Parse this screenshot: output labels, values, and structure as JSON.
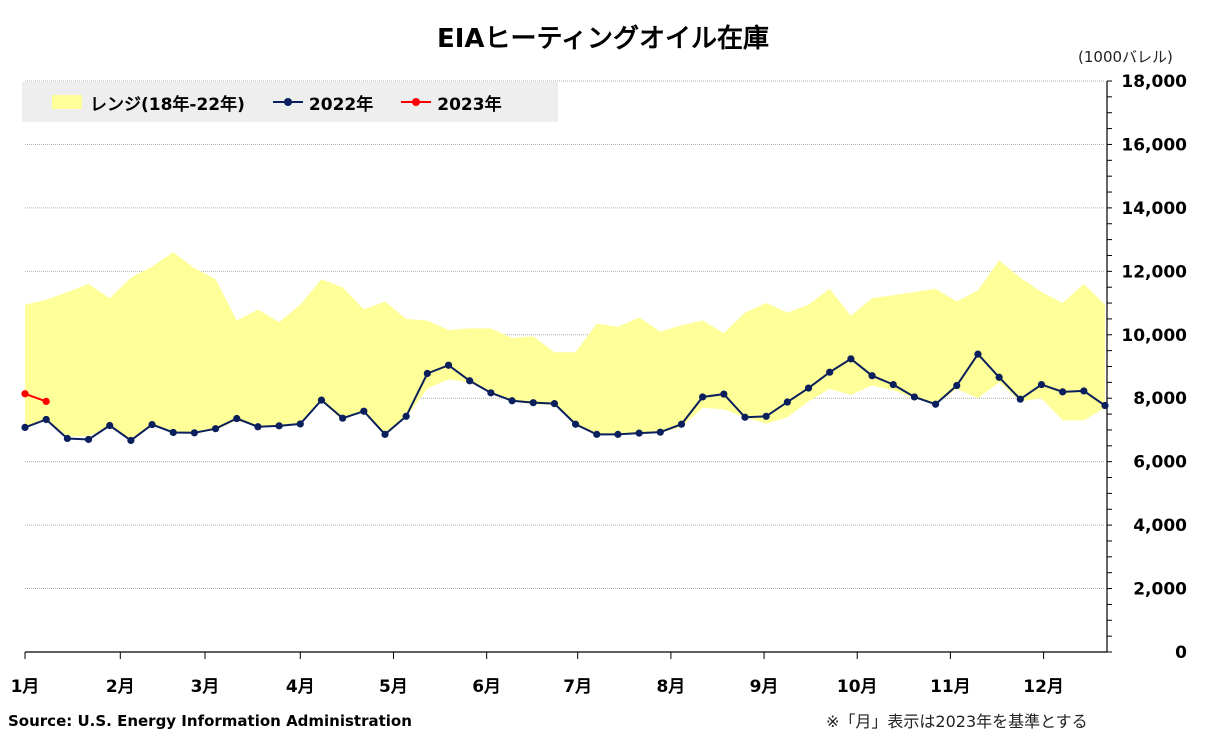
{
  "title": "EIAヒーティングオイル在庫",
  "unit_label": "(1000バレル)",
  "source": "Source: U.S. Energy Information Administration",
  "note": "※「月」表示は2023年を基準とする",
  "colors": {
    "range_fill": "#ffff99",
    "series_2022": "#0a1f5c",
    "series_2023": "#ff0000",
    "grid": "#b0b0b0",
    "legend_bg": "#eeeeee"
  },
  "legend": {
    "range": "レンジ(18年-22年)",
    "s2022": "2022年",
    "s2023": "2023年"
  },
  "chart_data": {
    "type": "line",
    "title": "EIAヒーティングオイル在庫",
    "ylabel": "(1000バレル)",
    "xlabel": "",
    "ylim": [
      0,
      18000
    ],
    "y_ticks": [
      0,
      2000,
      4000,
      6000,
      8000,
      10000,
      12000,
      14000,
      16000,
      18000
    ],
    "y_tick_labels": [
      "0",
      "2,000",
      "4,000",
      "6,000",
      "8,000",
      "10,000",
      "12,000",
      "14,000",
      "16,000",
      "18,000"
    ],
    "x_month_labels": [
      "1月",
      "2月",
      "3月",
      "4月",
      "5月",
      "6月",
      "7月",
      "8月",
      "9月",
      "10月",
      "11月",
      "12月"
    ],
    "x_month_week_index": [
      0,
      4.5,
      8.5,
      13,
      17.4,
      21.8,
      26.1,
      30.5,
      34.9,
      39.3,
      43.7,
      48.1
    ],
    "x_weeks": 52,
    "grid": true,
    "legend_position": "top-left",
    "range_upper": [
      10950,
      11100,
      11350,
      11600,
      11150,
      11800,
      12150,
      12600,
      12100,
      11750,
      10450,
      10800,
      10400,
      10950,
      11750,
      11500,
      10800,
      11050,
      10500,
      10450,
      10150,
      10200,
      10200,
      9900,
      9950,
      9450,
      9450,
      10350,
      10250,
      10550,
      10100,
      10300,
      10450,
      10050,
      10700,
      11000,
      10700,
      10950,
      11450,
      10600,
      11150,
      11250,
      11350,
      11450,
      11050,
      11400,
      12350,
      11800,
      11350,
      11000,
      11600,
      10950
    ],
    "range_lower": [
      7100,
      7300,
      6800,
      6800,
      7100,
      6700,
      7200,
      6900,
      6900,
      7000,
      7300,
      7100,
      7100,
      7200,
      7900,
      7300,
      7600,
      6900,
      7400,
      8300,
      8600,
      8500,
      8150,
      7900,
      7800,
      7800,
      7150,
      6900,
      6850,
      6900,
      6900,
      7100,
      7700,
      7650,
      7400,
      7200,
      7400,
      7900,
      8300,
      8100,
      8400,
      8250,
      8000,
      7800,
      8300,
      8000,
      8500,
      7900,
      8000,
      7300,
      7300,
      7700
    ],
    "series": [
      {
        "name": "2022年",
        "values": [
          7080,
          7330,
          6730,
          6700,
          7140,
          6670,
          7170,
          6920,
          6910,
          7040,
          7360,
          7100,
          7130,
          7190,
          7940,
          7370,
          7590,
          6860,
          7430,
          8780,
          9040,
          8550,
          8170,
          7920,
          7860,
          7830,
          7180,
          6860,
          6860,
          6900,
          6930,
          7180,
          8040,
          8130,
          7400,
          7430,
          7880,
          8320,
          8820,
          9240,
          8710,
          8430,
          8040,
          7810,
          8400,
          9390,
          8660,
          7970,
          8430,
          8200,
          8230,
          7770
        ]
      },
      {
        "name": "2023年",
        "values": [
          8140,
          7900
        ]
      }
    ]
  }
}
